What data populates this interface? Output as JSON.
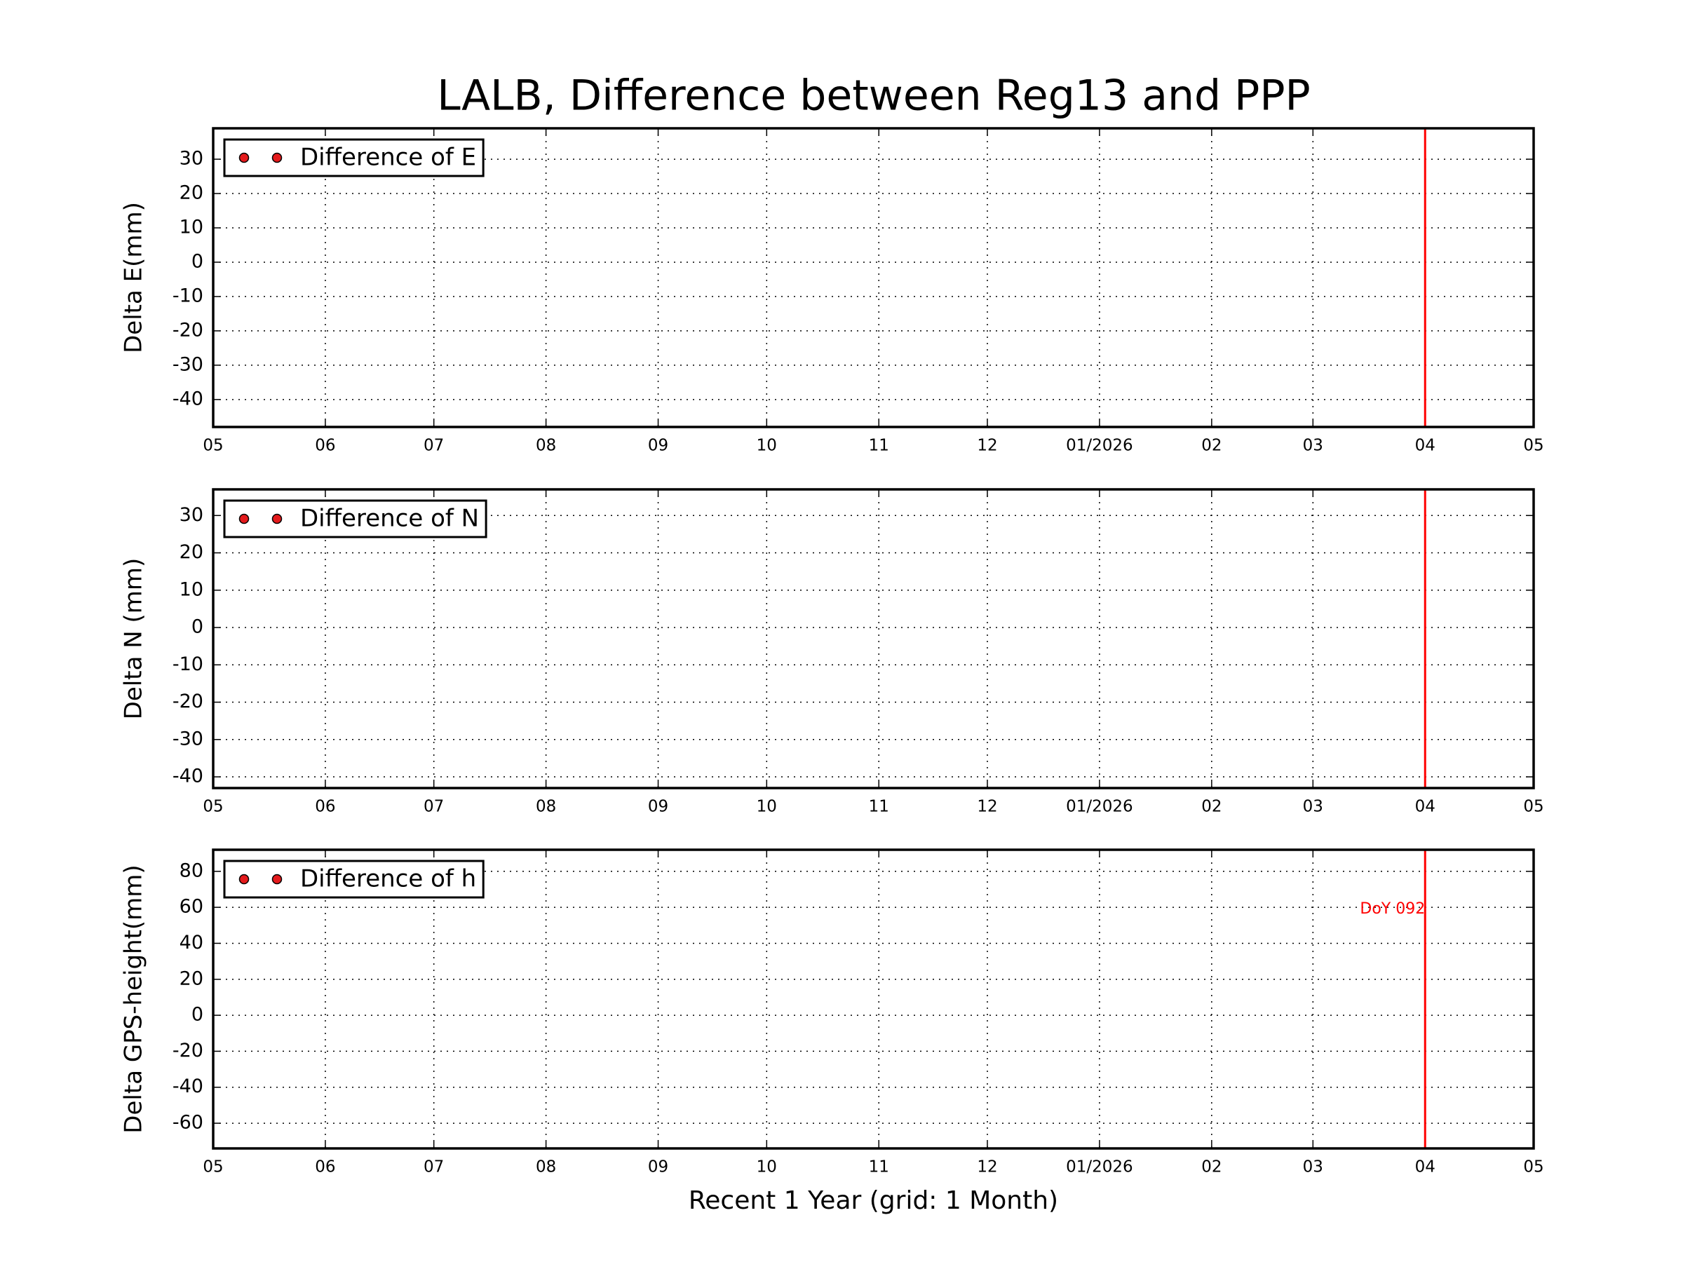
{
  "title": "LALB, Difference between Reg13 and PPP",
  "chart_data": [
    {
      "type": "scatter",
      "ylabel": "Delta E(mm)",
      "series": [
        {
          "name": "Difference of E",
          "color": "#e41a1c",
          "x": [],
          "values": []
        }
      ],
      "xlim": [
        "2025-05",
        "2026-05"
      ],
      "xticks": [
        {
          "value": "2025-05",
          "label": "05"
        },
        {
          "value": "2025-06",
          "label": "06"
        },
        {
          "value": "2025-07",
          "label": "07"
        },
        {
          "value": "2025-08",
          "label": "08"
        },
        {
          "value": "2025-09",
          "label": "09"
        },
        {
          "value": "2025-10",
          "label": "10"
        },
        {
          "value": "2025-11",
          "label": "11"
        },
        {
          "value": "2025-12",
          "label": "12"
        },
        {
          "value": "2026-01",
          "label": "01/2026"
        },
        {
          "value": "2026-02",
          "label": "02"
        },
        {
          "value": "2026-03",
          "label": "03"
        },
        {
          "value": "2026-04",
          "label": "04"
        },
        {
          "value": "2026-05",
          "label": "05"
        }
      ],
      "ylim": [
        -48,
        39
      ],
      "yticks": [
        -40,
        -30,
        -20,
        -10,
        0,
        10,
        20,
        30
      ],
      "vline": {
        "x": "2026-04",
        "color": "#ff0000"
      },
      "grid": true,
      "legend": "upper left"
    },
    {
      "type": "scatter",
      "ylabel": "Delta N (mm)",
      "series": [
        {
          "name": "Difference of N",
          "color": "#e41a1c",
          "x": [],
          "values": []
        }
      ],
      "xlim": [
        "2025-05",
        "2026-05"
      ],
      "xticks": [
        {
          "value": "2025-05",
          "label": "05"
        },
        {
          "value": "2025-06",
          "label": "06"
        },
        {
          "value": "2025-07",
          "label": "07"
        },
        {
          "value": "2025-08",
          "label": "08"
        },
        {
          "value": "2025-09",
          "label": "09"
        },
        {
          "value": "2025-10",
          "label": "10"
        },
        {
          "value": "2025-11",
          "label": "11"
        },
        {
          "value": "2025-12",
          "label": "12"
        },
        {
          "value": "2026-01",
          "label": "01/2026"
        },
        {
          "value": "2026-02",
          "label": "02"
        },
        {
          "value": "2026-03",
          "label": "03"
        },
        {
          "value": "2026-04",
          "label": "04"
        },
        {
          "value": "2026-05",
          "label": "05"
        }
      ],
      "ylim": [
        -43,
        37
      ],
      "yticks": [
        -40,
        -30,
        -20,
        -10,
        0,
        10,
        20,
        30
      ],
      "vline": {
        "x": "2026-04",
        "color": "#ff0000"
      },
      "grid": true,
      "legend": "upper left"
    },
    {
      "type": "scatter",
      "ylabel": "Delta GPS-height(mm)",
      "xlabel": "Recent 1 Year (grid: 1 Month)",
      "series": [
        {
          "name": "Difference of h",
          "color": "#e41a1c",
          "x": [],
          "values": []
        }
      ],
      "xlim": [
        "2025-05",
        "2026-05"
      ],
      "xticks": [
        {
          "value": "2025-05",
          "label": "05"
        },
        {
          "value": "2025-06",
          "label": "06"
        },
        {
          "value": "2025-07",
          "label": "07"
        },
        {
          "value": "2025-08",
          "label": "08"
        },
        {
          "value": "2025-09",
          "label": "09"
        },
        {
          "value": "2025-10",
          "label": "10"
        },
        {
          "value": "2025-11",
          "label": "11"
        },
        {
          "value": "2025-12",
          "label": "12"
        },
        {
          "value": "2026-01",
          "label": "01/2026"
        },
        {
          "value": "2026-02",
          "label": "02"
        },
        {
          "value": "2026-03",
          "label": "03"
        },
        {
          "value": "2026-04",
          "label": "04"
        },
        {
          "value": "2026-05",
          "label": "05"
        }
      ],
      "ylim": [
        -74,
        92
      ],
      "yticks": [
        -60,
        -40,
        -20,
        0,
        20,
        40,
        60,
        80
      ],
      "vline": {
        "x": "2026-04",
        "color": "#ff0000"
      },
      "annotation": {
        "text": "DoY 092",
        "x": "2026-04",
        "y": 60,
        "color": "#ff0000"
      },
      "grid": true,
      "legend": "upper left"
    }
  ]
}
